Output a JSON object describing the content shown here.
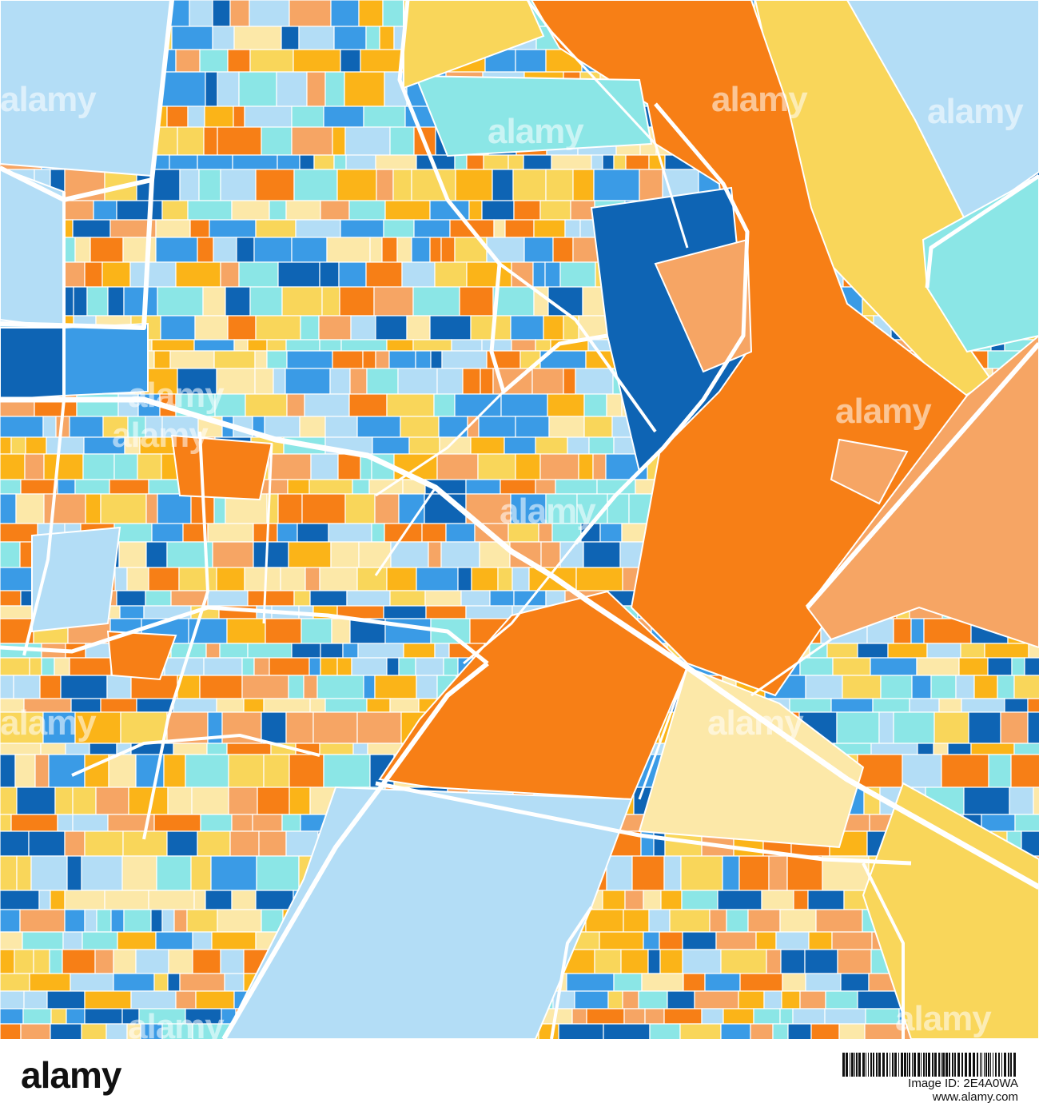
{
  "watermark": {
    "text": "alamy"
  },
  "footer": {
    "logo": "alamy",
    "image_id": "Image ID: 2E4A0WA",
    "url": "www.alamy.com"
  },
  "colors": {
    "dark_orange": "#F77F16",
    "light_orange": "#F6A564",
    "amber": "#FBB418",
    "yellow": "#F9D65A",
    "pale_yellow": "#FCE8A8",
    "dark_blue": "#0E64B4",
    "mid_blue": "#3A9BE6",
    "light_blue": "#B3DDF6",
    "aqua": "#8BE6E6",
    "road": "#ffffff"
  },
  "icons": {
    "barcode": "barcode-icon"
  }
}
